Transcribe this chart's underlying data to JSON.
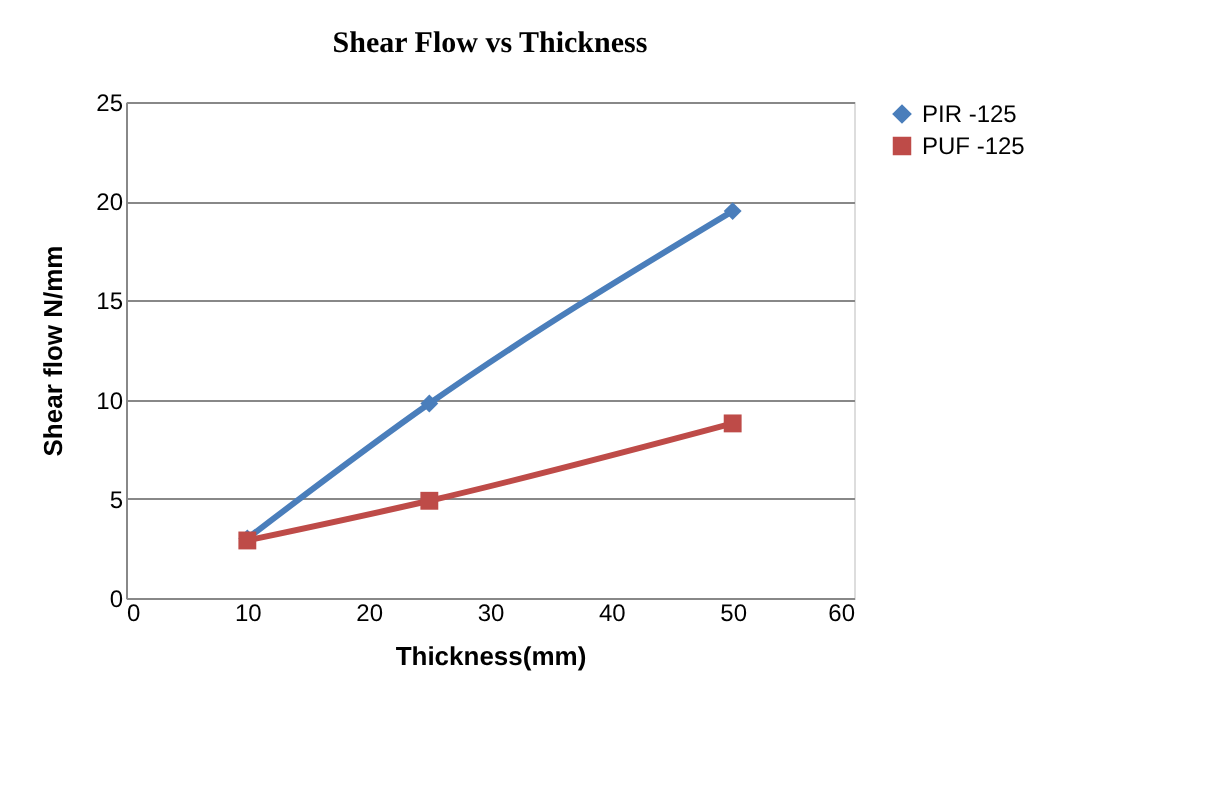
{
  "chart_data": {
    "type": "line",
    "title": "Shear Flow vs Thickness",
    "xlabel": "Thickness(mm)",
    "ylabel": "Shear flow N/mm",
    "x": [
      10,
      25,
      50
    ],
    "series": [
      {
        "name": "PIR -125",
        "color": "#4a7ebb",
        "marker": "diamond",
        "values": [
          3.0,
          9.8,
          19.5
        ]
      },
      {
        "name": "PUF -125",
        "color": "#be4b48",
        "marker": "square",
        "values": [
          2.9,
          4.9,
          8.8
        ]
      }
    ],
    "xlim": [
      0,
      60
    ],
    "xticks": [
      0,
      10,
      20,
      30,
      40,
      50,
      60
    ],
    "ylim": [
      0,
      25
    ],
    "yticks": [
      0,
      5,
      10,
      15,
      20,
      25
    ],
    "grid": "y",
    "legend": "right",
    "line_style": "solid"
  }
}
